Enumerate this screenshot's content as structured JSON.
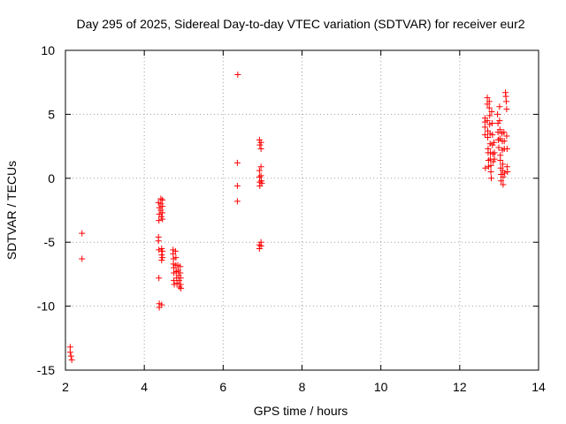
{
  "chart_data": {
    "type": "scatter",
    "title": "Day 295 of 2025, Sidereal Day-to-day VTEC variation (SDTVAR) for receiver eur2",
    "xlabel": "GPS time / hours",
    "ylabel": "SDTVAR / TECUs",
    "xlim": [
      2,
      14
    ],
    "ylim": [
      -15,
      10
    ],
    "xticks": [
      2,
      4,
      6,
      8,
      10,
      12,
      14
    ],
    "yticks": [
      -15,
      -10,
      -5,
      0,
      5,
      10
    ],
    "grid": true,
    "marker": "+",
    "color": "#ff0000",
    "series": [
      {
        "name": "SDTVAR",
        "points": [
          [
            2.12,
            -13.2
          ],
          [
            2.12,
            -13.6
          ],
          [
            2.14,
            -13.9
          ],
          [
            2.16,
            -14.2
          ],
          [
            2.42,
            -4.3
          ],
          [
            2.42,
            -6.3
          ],
          [
            4.36,
            -1.9
          ],
          [
            4.38,
            -2.3
          ],
          [
            4.38,
            -2.8
          ],
          [
            4.37,
            -3.3
          ],
          [
            4.36,
            -4.6
          ],
          [
            4.36,
            -4.9
          ],
          [
            4.37,
            -5.6
          ],
          [
            4.37,
            -7.8
          ],
          [
            4.38,
            -9.8
          ],
          [
            4.38,
            -10.1
          ],
          [
            4.42,
            -1.6
          ],
          [
            4.42,
            -2.0
          ],
          [
            4.42,
            -2.5
          ],
          [
            4.43,
            -3.0
          ],
          [
            4.44,
            -5.5
          ],
          [
            4.44,
            -6.0
          ],
          [
            4.44,
            -6.4
          ],
          [
            4.44,
            -9.9
          ],
          [
            4.46,
            -1.7
          ],
          [
            4.46,
            -2.2
          ],
          [
            4.46,
            -2.7
          ],
          [
            4.46,
            -3.2
          ],
          [
            4.46,
            -5.7
          ],
          [
            4.46,
            -6.2
          ],
          [
            4.73,
            -5.6
          ],
          [
            4.73,
            -5.9
          ],
          [
            4.74,
            -6.3
          ],
          [
            4.74,
            -6.7
          ],
          [
            4.75,
            -7.0
          ],
          [
            4.75,
            -7.4
          ],
          [
            4.75,
            -8.0
          ],
          [
            4.76,
            -8.3
          ],
          [
            4.79,
            -5.7
          ],
          [
            4.8,
            -6.2
          ],
          [
            4.8,
            -6.8
          ],
          [
            4.81,
            -7.3
          ],
          [
            4.82,
            -7.8
          ],
          [
            4.83,
            -8.2
          ],
          [
            4.85,
            -6.8
          ],
          [
            4.86,
            -7.2
          ],
          [
            4.87,
            -7.6
          ],
          [
            4.88,
            -8.0
          ],
          [
            4.89,
            -8.5
          ],
          [
            4.91,
            -6.9
          ],
          [
            4.91,
            -7.4
          ],
          [
            4.92,
            -7.8
          ],
          [
            4.92,
            -8.3
          ],
          [
            4.93,
            -8.6
          ],
          [
            6.37,
            8.1
          ],
          [
            6.36,
            1.2
          ],
          [
            6.36,
            -0.6
          ],
          [
            6.36,
            -1.8
          ],
          [
            6.92,
            3.0
          ],
          [
            6.93,
            2.6
          ],
          [
            6.92,
            0.6
          ],
          [
            6.92,
            0.1
          ],
          [
            6.93,
            -0.3
          ],
          [
            6.93,
            -0.6
          ],
          [
            6.92,
            -5.2
          ],
          [
            6.92,
            -5.5
          ],
          [
            6.96,
            2.8
          ],
          [
            6.96,
            2.3
          ],
          [
            6.96,
            0.9
          ],
          [
            6.96,
            0.2
          ],
          [
            6.97,
            -0.2
          ],
          [
            6.98,
            -0.4
          ],
          [
            6.96,
            -5.0
          ],
          [
            6.96,
            -5.3
          ],
          [
            12.64,
            4.7
          ],
          [
            12.64,
            4.4
          ],
          [
            12.64,
            4.0
          ],
          [
            12.64,
            3.4
          ],
          [
            12.65,
            0.8
          ],
          [
            12.7,
            6.3
          ],
          [
            12.7,
            5.8
          ],
          [
            12.7,
            4.5
          ],
          [
            12.71,
            3.7
          ],
          [
            12.71,
            3.2
          ],
          [
            12.72,
            2.3
          ],
          [
            12.72,
            2.0
          ],
          [
            12.73,
            1.4
          ],
          [
            12.73,
            0.9
          ],
          [
            12.75,
            6.0
          ],
          [
            12.75,
            5.5
          ],
          [
            12.76,
            4.9
          ],
          [
            12.76,
            4.2
          ],
          [
            12.77,
            3.5
          ],
          [
            12.77,
            2.7
          ],
          [
            12.78,
            2.0
          ],
          [
            12.78,
            1.5
          ],
          [
            12.79,
            1.0
          ],
          [
            12.79,
            0.5
          ],
          [
            12.8,
            0.0
          ],
          [
            12.81,
            5.2
          ],
          [
            12.82,
            4.3
          ],
          [
            12.83,
            3.4
          ],
          [
            12.83,
            2.6
          ],
          [
            12.84,
            1.9
          ],
          [
            12.85,
            1.3
          ],
          [
            12.87,
            2.8
          ],
          [
            12.88,
            2.0
          ],
          [
            12.88,
            1.5
          ],
          [
            12.96,
            5.0
          ],
          [
            12.97,
            4.3
          ],
          [
            12.97,
            3.6
          ],
          [
            12.98,
            3.0
          ],
          [
            12.99,
            2.4
          ],
          [
            13.01,
            5.6
          ],
          [
            13.01,
            4.5
          ],
          [
            13.02,
            3.8
          ],
          [
            13.02,
            3.1
          ],
          [
            13.03,
            1.8
          ],
          [
            13.03,
            1.4
          ],
          [
            13.04,
            0.8
          ],
          [
            13.05,
            0.3
          ],
          [
            13.05,
            -0.2
          ],
          [
            13.07,
            3.5
          ],
          [
            13.08,
            2.9
          ],
          [
            13.08,
            2.2
          ],
          [
            13.09,
            1.1
          ],
          [
            13.09,
            0.6
          ],
          [
            13.1,
            0.1
          ],
          [
            13.1,
            -0.5
          ],
          [
            13.12,
            3.6
          ],
          [
            13.13,
            2.9
          ],
          [
            13.13,
            2.3
          ],
          [
            13.14,
            0.4
          ],
          [
            13.16,
            6.7
          ],
          [
            13.17,
            6.4
          ],
          [
            13.18,
            6.0
          ],
          [
            13.19,
            5.4
          ],
          [
            13.19,
            3.3
          ],
          [
            13.2,
            2.3
          ],
          [
            13.2,
            0.9
          ],
          [
            13.21,
            0.5
          ]
        ]
      }
    ]
  }
}
